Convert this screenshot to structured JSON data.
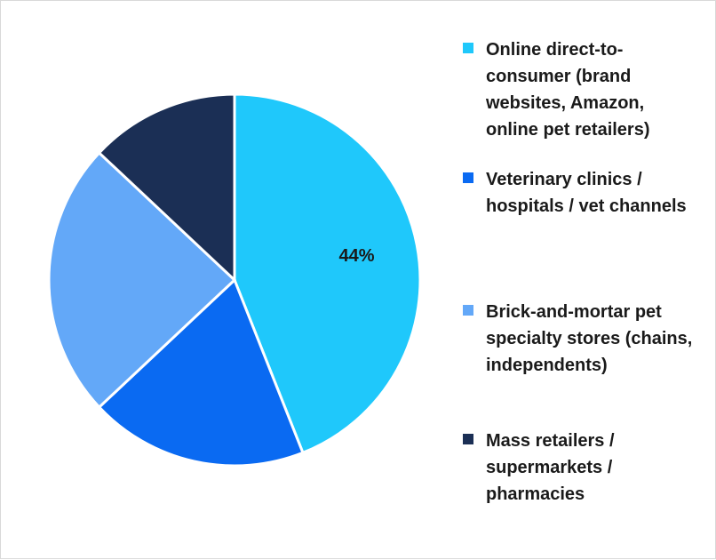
{
  "chart_data": {
    "type": "pie",
    "title": "",
    "series": [
      {
        "values": [
          44,
          19,
          24,
          13
        ]
      }
    ],
    "categories": [
      "Online direct-to-consumer (brand websites, Amazon, online pet retailers)",
      "Veterinary clinics / hospitals / vet channels",
      "Brick-and-mortar pet specialty stores (chains, independents)",
      "Mass retailers / supermarkets / pharmacies"
    ],
    "colors": [
      "#1fc8fb",
      "#0a6af2",
      "#63a8f8",
      "#1b2f55"
    ],
    "data_labels": [
      "44%",
      "",
      "",
      ""
    ],
    "legend_position": "right"
  },
  "legend": {
    "items": [
      {
        "line_text": "Online direct-to-\nconsumer (brand\nwebsites, Amazon,\nonline pet retailers)",
        "color": "#1fc8fb"
      },
      {
        "line_text": "Veterinary clinics /\nhospitals / vet channels",
        "color": "#0a6af2"
      },
      {
        "line_text": "Brick-and-mortar pet\nspecialty stores (chains,\nindependents)",
        "color": "#63a8f8"
      },
      {
        "line_text": "Mass retailers /\nsupermarkets /\npharmacies",
        "color": "#1b2f55"
      }
    ]
  }
}
